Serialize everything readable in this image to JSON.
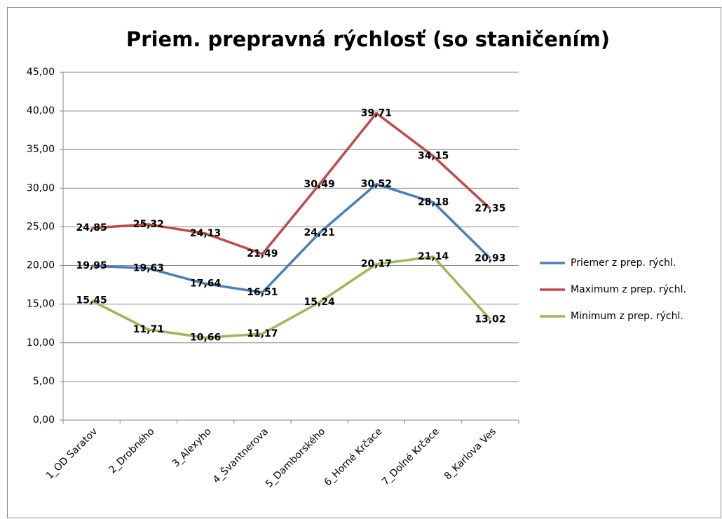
{
  "chart_data": {
    "type": "line",
    "title": "Priem. prepravná rýchlosť (so staničením)",
    "categories": [
      "1_OD Saratov",
      "2_Drobného",
      "3_Alexyho",
      "4_Švantnerova",
      "5_Damborského",
      "6_Horné Krčace",
      "7_Dolné Krčace",
      "8_Karlova Ves"
    ],
    "series": [
      {
        "name": "Priemer z prep. rýchl.",
        "color": "#4a7ebb",
        "values": [
          19.95,
          19.63,
          17.64,
          16.51,
          24.21,
          30.52,
          28.18,
          20.93
        ],
        "value_labels": [
          "19,95",
          "19,63",
          "17,64",
          "16,51",
          "24,21",
          "30,52",
          "28,18",
          "20,93"
        ]
      },
      {
        "name": "Maximum z prep. rýchl.",
        "color": "#be4b48",
        "values": [
          24.85,
          25.32,
          24.13,
          21.49,
          30.49,
          39.71,
          34.15,
          27.35
        ],
        "value_labels": [
          "24,85",
          "25,32",
          "24,13",
          "21,49",
          "30,49",
          "39,71",
          "34,15",
          "27,35"
        ]
      },
      {
        "name": "Minimum z prep. rýchl.",
        "color": "#98b954",
        "values": [
          15.45,
          11.71,
          10.66,
          11.17,
          15.24,
          20.17,
          21.14,
          13.02
        ],
        "value_labels": [
          "15,45",
          "11,71",
          "10,66",
          "11,17",
          "15,24",
          "20,17",
          "21,14",
          "13,02"
        ]
      }
    ],
    "ylim": [
      0,
      45
    ],
    "yticks": [
      {
        "value": 0,
        "label": "0,00"
      },
      {
        "value": 5,
        "label": "5,00"
      },
      {
        "value": 10,
        "label": "10,00"
      },
      {
        "value": 15,
        "label": "15,00"
      },
      {
        "value": 20,
        "label": "20,00"
      },
      {
        "value": 25,
        "label": "25,00"
      },
      {
        "value": 30,
        "label": "30,00"
      },
      {
        "value": 35,
        "label": "35,00"
      },
      {
        "value": 40,
        "label": "40,00"
      },
      {
        "value": 45,
        "label": "45,00"
      }
    ],
    "grid": true,
    "legend": "right"
  }
}
